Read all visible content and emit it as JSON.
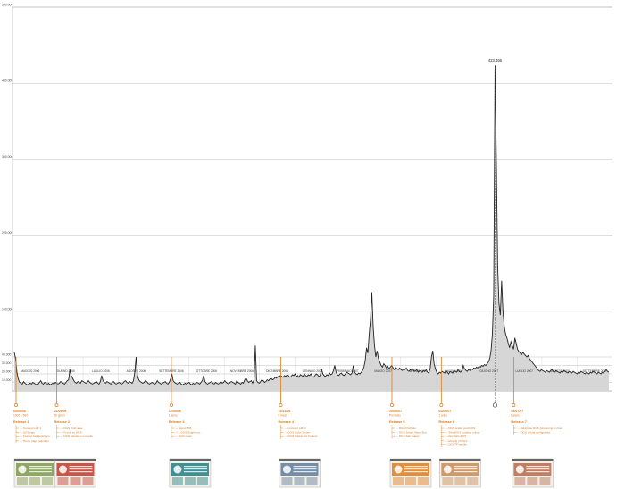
{
  "chart_data": {
    "type": "area",
    "ylim": [
      0,
      500000
    ],
    "yticks": [
      {
        "value": 500000,
        "label": "500.000"
      },
      {
        "value": 400000,
        "label": "400.000"
      },
      {
        "value": 300000,
        "label": "300.000"
      },
      {
        "value": 200000,
        "label": "200.000"
      },
      {
        "value": 100000,
        "label": "100.000"
      },
      {
        "value": 40000,
        "label": "40.000"
      },
      {
        "value": 30000,
        "label": "30.000"
      },
      {
        "value": 20000,
        "label": "20.000"
      },
      {
        "value": 10000,
        "label": "10.000"
      }
    ],
    "months": [
      "MAGGIO 2006",
      "GIUGNO 2006",
      "LUGLIO 2006",
      "AGOSTO 2006",
      "SETTEMBRE 2006",
      "OTTOBRE 2006",
      "NOVEMBRE 2006",
      "DICEMBRE 2006",
      "GENNAIO 2007",
      "FEBBRAIO 2007",
      "MARZO 2007",
      "APRILE 2007",
      "MAGGIO 2007",
      "GIUGNO 2007",
      "LUGLIO 2007",
      "AGOSTO 2007",
      "SETTEMBRE 2007"
    ],
    "peak": {
      "value": 423466,
      "label": "423.466",
      "month_index": 13.7
    },
    "series": [
      {
        "values": [
          46000,
          38000,
          22000,
          14000,
          10000,
          9000,
          8000,
          11000,
          9000,
          8000,
          7000,
          8000,
          9000,
          8000,
          10000,
          9000,
          8000,
          7000,
          8000,
          10000,
          12000,
          9000,
          8000,
          10000,
          9000,
          8000,
          9000,
          7000,
          8000,
          9000,
          8000,
          10000,
          9000,
          8000,
          9000,
          11000,
          10000,
          9000,
          8000,
          10000,
          12000,
          13000,
          25000,
          18000,
          15000,
          12000,
          10000,
          9000,
          11000,
          10000,
          9000,
          12000,
          11000,
          10000,
          9000,
          10000,
          12000,
          10000,
          9000,
          8000,
          9000,
          10000,
          11000,
          9000,
          8000,
          11000,
          18000,
          12000,
          10000,
          9000,
          11000,
          10000,
          9000,
          8000,
          10000,
          11000,
          9000,
          8000,
          9000,
          10000,
          9000,
          8000,
          9000,
          11000,
          12000,
          10000,
          9000,
          11000,
          10000,
          9000,
          12000,
          22000,
          40000,
          18000,
          13000,
          11000,
          10000,
          9000,
          10000,
          12000,
          11000,
          9000,
          8000,
          9000,
          10000,
          9000,
          8000,
          9000,
          12000,
          10000,
          9000,
          8000,
          9000,
          10000,
          11000,
          9000,
          8000,
          10000,
          14000,
          20000,
          12000,
          10000,
          9000,
          8000,
          9000,
          10000,
          8000,
          7000,
          8000,
          9000,
          8000,
          9000,
          10000,
          8000,
          7000,
          9000,
          8000,
          9000,
          10000,
          9000,
          8000,
          10000,
          12000,
          18000,
          11000,
          9000,
          8000,
          9000,
          10000,
          11000,
          9000,
          8000,
          10000,
          9000,
          8000,
          9000,
          11000,
          9000,
          10000,
          12000,
          10000,
          9000,
          8000,
          10000,
          11000,
          10000,
          9000,
          8000,
          12000,
          10000,
          9000,
          8000,
          10000,
          9000,
          13000,
          15000,
          12000,
          10000,
          11000,
          12000,
          9000,
          13000,
          55000,
          12000,
          10000,
          9000,
          11000,
          13000,
          12000,
          10000,
          11000,
          13000,
          12000,
          14000,
          15000,
          13000,
          14000,
          16000,
          15000,
          17000,
          16000,
          18000,
          17000,
          16000,
          18000,
          17000,
          19000,
          18000,
          16000,
          17000,
          19000,
          18000,
          20000,
          17000,
          18000,
          16000,
          19000,
          18000,
          17000,
          20000,
          18000,
          17000,
          19000,
          18000,
          20000,
          17000,
          16000,
          18000,
          20000,
          19000,
          17000,
          18000,
          26000,
          20000,
          18000,
          17000,
          19000,
          18000,
          21000,
          19000,
          20000,
          24000,
          30000,
          22000,
          19000,
          18000,
          20000,
          21000,
          19000,
          18000,
          20000,
          22000,
          21000,
          20000,
          19000,
          21000,
          30000,
          22000,
          20000,
          19000,
          21000,
          20000,
          22000,
          24000,
          28000,
          36000,
          52000,
          45000,
          70000,
          90000,
          125000,
          80000,
          55000,
          40000,
          48000,
          38000,
          34000,
          30000,
          28000,
          32000,
          30000,
          27000,
          29000,
          26000,
          28000,
          30000,
          27000,
          25000,
          28000,
          26000,
          25000,
          27000,
          25000,
          24000,
          26000,
          25000,
          27000,
          24000,
          23000,
          25000,
          24000,
          26000,
          23000,
          24000,
          25000,
          22000,
          24000,
          23000,
          22000,
          24000,
          23000,
          25000,
          22000,
          21000,
          26000,
          40000,
          48000,
          32000,
          26000,
          22000,
          20000,
          22000,
          21000,
          23000,
          22000,
          21000,
          24000,
          22000,
          20000,
          23000,
          22000,
          21000,
          24000,
          23000,
          22000,
          25000,
          23000,
          22000,
          24000,
          30000,
          26000,
          24000,
          23000,
          25000,
          24000,
          26000,
          25000,
          27000,
          26000,
          28000,
          27000,
          29000,
          28000,
          30000,
          29000,
          31000,
          30000,
          32000,
          34000,
          38000,
          48000,
          70000,
          120000,
          423466,
          300000,
          160000,
          110000,
          95000,
          140000,
          100000,
          80000,
          70000,
          65000,
          58000,
          52000,
          60000,
          55000,
          50000,
          65000,
          58000,
          50000,
          47000,
          45000,
          43000,
          46000,
          44000,
          42000,
          40000,
          42000,
          38000,
          36000,
          34000,
          32000,
          30000,
          28000,
          26000,
          24000,
          23000,
          25000,
          24000,
          23000,
          22000,
          24000,
          23000,
          22000,
          24000,
          25000,
          23000,
          22000,
          24000,
          23000,
          22000,
          21000,
          23000,
          22000,
          24000,
          23000,
          22000,
          21000,
          23000,
          22000,
          21000,
          23000,
          22000,
          21000,
          20000,
          22000,
          21000,
          23000,
          22000,
          21000,
          20000,
          22000,
          21000,
          20000,
          22000,
          21000,
          23000,
          22000,
          21000,
          20000,
          22000,
          21000,
          20000,
          22000,
          21000,
          23000,
          25000,
          23000,
          22000
        ]
      }
    ],
    "releases": [
      {
        "date": "03/05/06",
        "sub": "1000 ≥ 500",
        "name": "Release 1",
        "pos": 0.0,
        "items": [
          "Concept LdF 1",
          "DGS ligio",
          "Format Gadgetazione",
          "Home page redesign"
        ]
      },
      {
        "date": "01/06/06",
        "sub": "50 giorni",
        "name": "Release 2",
        "pos": 1.15,
        "items": [
          "DGS Club area",
          "Focus su DGS",
          "DGS navette e consulte"
        ]
      },
      {
        "date": "12/09/06",
        "sub": "1 anno",
        "name": "Release 3",
        "pos": 4.4,
        "items": [
          "Spesti 365",
          "1 DGS Single box",
          "DGS news"
        ]
      },
      {
        "date": "15/12/06",
        "sub": "6 mesi",
        "name": "Release 4",
        "pos": 7.5,
        "items": [
          "Concept LdF 2",
          "DGS Color Series",
          "DGS Sticker art Contest"
        ]
      },
      {
        "date": "20/03/07",
        "sub": "Premiato",
        "name": "Release 5",
        "pos": 10.65,
        "items": [
          "DGS Portfolio",
          "DGS Single Video Box",
          "DGS Star maker"
        ]
      },
      {
        "date": "02/05/07",
        "sub": "1 anno",
        "name": "Release 6",
        "pos": 12.05,
        "items": [
          "DGS scatto youth A/S",
          "SiAmDGS bodding online",
          "Doc date 2007",
          "Moving of DGS",
          "DGSTP results"
        ]
      },
      {
        "date": "04/07/07",
        "sub": "Lancio",
        "name": "Release 7",
        "pos": 14.1,
        "items": [
          "Welcome DGS (streaming on line)",
          "DGS virtual configurator"
        ]
      }
    ]
  },
  "thumb_colors": [
    "#7a9b4a",
    "#c0392b",
    "#1f7f86",
    "#5c7d9a",
    "#e07b1c",
    "#c98a54",
    "#b86a4a"
  ],
  "accent_color": "#e07b1c",
  "area_color": "#d6d6d6"
}
